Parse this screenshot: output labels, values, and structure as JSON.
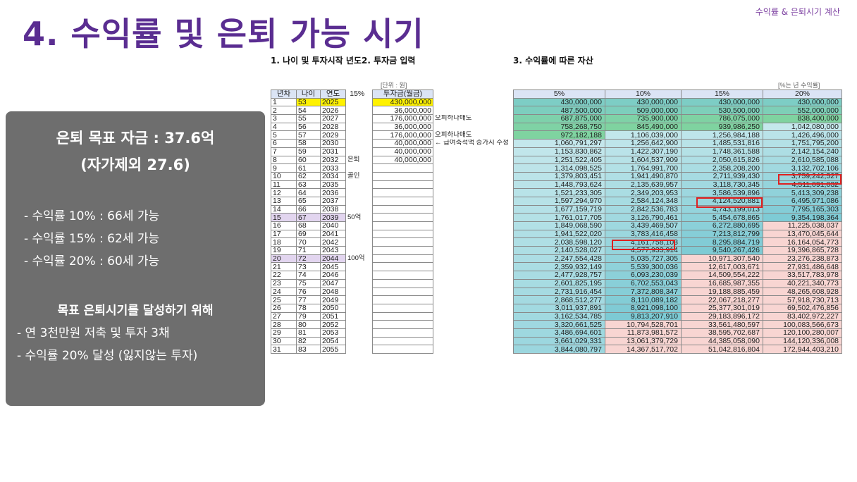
{
  "header": {
    "top_right": "수익률 & 은퇴시기 계산",
    "title": "4. 수익률 및 은퇴 가능 시기"
  },
  "summary": {
    "goal_line1": "은퇴 목표 자금 : 37.6억",
    "goal_line2": "(자가제외 27.6)",
    "rates": [
      "- 수익률 10% : 66세 가능",
      "- 수익률 15% : 62세 가능",
      "- 수익률 20% : 60세 가능"
    ],
    "plan_title": "목표 은퇴시기를 달성하기 위해",
    "plans": [
      "- 연 3천만원 저축 및 투자 3채",
      "- 수익률 20% 달성 (잃지않는 투자)"
    ]
  },
  "sections": {
    "left_title": "1. 나이 및 투자시작 년도2. 투자금 입력",
    "right_title": "3. 수익률에 따른 자산",
    "left_unit": "[단위 : 원]",
    "right_unit": "[%는 년 수익률]"
  },
  "left_table": {
    "headers": [
      "년차",
      "나이",
      "연도",
      "15%",
      "투자금(월금)"
    ],
    "rows": [
      [
        "1",
        "53",
        "2025",
        "",
        "430,000,000",
        ""
      ],
      [
        "2",
        "54",
        "2026",
        "",
        "36,000,000",
        ""
      ],
      [
        "3",
        "55",
        "2027",
        "",
        "176,000,000",
        "오피하나매도"
      ],
      [
        "4",
        "56",
        "2028",
        "",
        "36,000,000",
        ""
      ],
      [
        "5",
        "57",
        "2029",
        "",
        "176,000,000",
        "오피하나매도"
      ],
      [
        "6",
        "58",
        "2030",
        "",
        "40,000,000",
        "← 급여축적액 증가시 수정"
      ],
      [
        "7",
        "59",
        "2031",
        "",
        "40,000,000",
        ""
      ],
      [
        "8",
        "60",
        "2032",
        "은퇴",
        "40,000,000",
        ""
      ],
      [
        "9",
        "61",
        "2033",
        "",
        "",
        ""
      ],
      [
        "10",
        "62",
        "2034",
        "골인",
        "",
        ""
      ],
      [
        "11",
        "63",
        "2035",
        "",
        "",
        ""
      ],
      [
        "12",
        "64",
        "2036",
        "",
        "",
        ""
      ],
      [
        "13",
        "65",
        "2037",
        "",
        "",
        ""
      ],
      [
        "14",
        "66",
        "2038",
        "",
        "",
        ""
      ],
      [
        "15",
        "67",
        "2039",
        "50억",
        "",
        ""
      ],
      [
        "16",
        "68",
        "2040",
        "",
        "",
        ""
      ],
      [
        "17",
        "69",
        "2041",
        "",
        "",
        ""
      ],
      [
        "18",
        "70",
        "2042",
        "",
        "",
        ""
      ],
      [
        "19",
        "71",
        "2043",
        "",
        "",
        ""
      ],
      [
        "20",
        "72",
        "2044",
        "100억",
        "",
        ""
      ],
      [
        "21",
        "73",
        "2045",
        "",
        "",
        ""
      ],
      [
        "22",
        "74",
        "2046",
        "",
        "",
        ""
      ],
      [
        "23",
        "75",
        "2047",
        "",
        "",
        ""
      ],
      [
        "24",
        "76",
        "2048",
        "",
        "",
        ""
      ],
      [
        "25",
        "77",
        "2049",
        "",
        "",
        ""
      ],
      [
        "26",
        "78",
        "2050",
        "",
        "",
        ""
      ],
      [
        "27",
        "79",
        "2051",
        "",
        "",
        ""
      ],
      [
        "28",
        "80",
        "2052",
        "",
        "",
        ""
      ],
      [
        "29",
        "81",
        "2053",
        "",
        "",
        ""
      ],
      [
        "30",
        "82",
        "2054",
        "",
        "",
        ""
      ],
      [
        "31",
        "83",
        "2055",
        "",
        "",
        ""
      ]
    ]
  },
  "right_table": {
    "headers": [
      "5%",
      "10%",
      "15%",
      "20%"
    ],
    "rows": [
      [
        "430,000,000",
        "430,000,000",
        "430,000,000",
        "430,000,000"
      ],
      [
        "487,500,000",
        "509,000,000",
        "530,500,000",
        "552,000,000"
      ],
      [
        "687,875,000",
        "735,900,000",
        "786,075,000",
        "838,400,000"
      ],
      [
        "758,268,750",
        "845,490,000",
        "939,986,250",
        "1,042,080,000"
      ],
      [
        "972,182,188",
        "1,106,039,000",
        "1,256,984,188",
        "1,426,496,000"
      ],
      [
        "1,060,791,297",
        "1,256,642,900",
        "1,485,531,816",
        "1,751,795,200"
      ],
      [
        "1,153,830,862",
        "1,422,307,190",
        "1,748,361,588",
        "2,142,154,240"
      ],
      [
        "1,251,522,405",
        "1,604,537,909",
        "2,050,615,826",
        "2,610,585,088"
      ],
      [
        "1,314,098,525",
        "1,764,991,700",
        "2,358,208,200",
        "3,132,702,106"
      ],
      [
        "1,379,803,451",
        "1,941,490,870",
        "2,711,939,430",
        "3,759,242,527"
      ],
      [
        "1,448,793,624",
        "2,135,639,957",
        "3,118,730,345",
        "4,511,091,032"
      ],
      [
        "1,521,233,305",
        "2,349,203,953",
        "3,586,539,896",
        "5,413,309,238"
      ],
      [
        "1,597,294,970",
        "2,584,124,348",
        "4,124,520,881",
        "6,495,971,086"
      ],
      [
        "1,677,159,719",
        "2,842,536,783",
        "4,743,199,013",
        "7,795,165,303"
      ],
      [
        "1,761,017,705",
        "3,126,790,461",
        "5,454,678,865",
        "9,354,198,364"
      ],
      [
        "1,849,068,590",
        "3,439,469,507",
        "6,272,880,695",
        "11,225,038,037"
      ],
      [
        "1,941,522,020",
        "3,783,416,458",
        "7,213,812,799",
        "13,470,045,644"
      ],
      [
        "2,038,598,120",
        "4,161,758,103",
        "8,295,884,719",
        "16,164,054,773"
      ],
      [
        "2,140,528,027",
        "4,577,933,914",
        "9,540,267,426",
        "19,396,865,728"
      ],
      [
        "2,247,554,428",
        "5,035,727,305",
        "10,971,307,540",
        "23,276,238,873"
      ],
      [
        "2,359,932,149",
        "5,539,300,036",
        "12,617,003,671",
        "27,931,486,648"
      ],
      [
        "2,477,928,757",
        "6,093,230,039",
        "14,509,554,222",
        "33,517,783,978"
      ],
      [
        "2,601,825,195",
        "6,702,553,043",
        "16,685,987,355",
        "40,221,340,773"
      ],
      [
        "2,731,916,454",
        "7,372,808,347",
        "19,188,885,459",
        "48,265,608,928"
      ],
      [
        "2,868,512,277",
        "8,110,089,182",
        "22,067,218,277",
        "57,918,730,713"
      ],
      [
        "3,011,937,891",
        "8,921,098,100",
        "25,377,301,019",
        "69,502,476,856"
      ],
      [
        "3,162,534,785",
        "9,813,207,910",
        "29,183,896,172",
        "83,402,972,227"
      ],
      [
        "3,320,661,525",
        "10,794,528,701",
        "33,561,480,597",
        "100,083,566,673"
      ],
      [
        "3,486,694,601",
        "11,873,981,572",
        "38,595,702,687",
        "120,100,280,007"
      ],
      [
        "3,661,029,331",
        "13,061,379,729",
        "44,385,058,090",
        "144,120,336,008"
      ],
      [
        "3,844,080,797",
        "14,367,517,702",
        "51,042,816,804",
        "172,944,403,210"
      ]
    ]
  },
  "colors": {
    "title": "#5a2d91",
    "green_high": "#7fd3a0",
    "teal_low": "#e3f4f6",
    "teal_high": "#7ccad4",
    "pink": "#f8d5d2",
    "highlight_yellow": "#fff200",
    "highlight_purple": "#e2d5ef",
    "red_box": "#e02020"
  }
}
